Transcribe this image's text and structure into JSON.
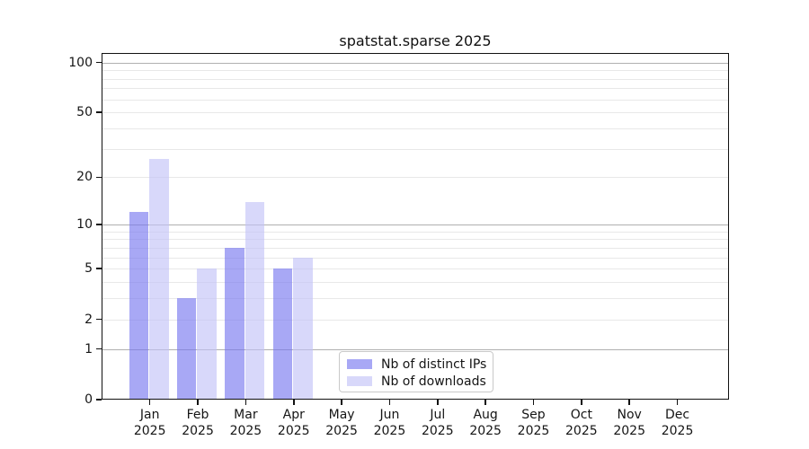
{
  "title": "spatstat.sparse 2025",
  "chart_data": {
    "type": "bar",
    "title": "spatstat.sparse 2025",
    "categories": [
      "Jan",
      "Feb",
      "Mar",
      "Apr",
      "May",
      "Jun",
      "Jul",
      "Aug",
      "Sep",
      "Oct",
      "Nov",
      "Dec"
    ],
    "year_label": "2025",
    "series": [
      {
        "name": "Nb of distinct IPs",
        "legend_color": "#a8a8f5",
        "bar_color": "rgba(117,117,239,0.63)",
        "values": [
          12,
          3,
          7,
          5,
          0,
          0,
          0,
          0,
          0,
          0,
          0,
          0
        ]
      },
      {
        "name": "Nb of downloads",
        "legend_color": "#d8d8fa",
        "bar_color": "rgba(193,193,247,0.63)",
        "values": [
          26,
          5,
          14,
          6,
          0,
          0,
          0,
          0,
          0,
          0,
          0,
          0
        ]
      }
    ],
    "xlabel": "",
    "ylabel": "",
    "yscale": "log1p",
    "ylim": [
      0,
      114
    ],
    "yticks": [
      0,
      1,
      2,
      5,
      10,
      20,
      50,
      100
    ],
    "major_gridlines": [
      1,
      10,
      100
    ],
    "minor_gridlines": [
      2,
      3,
      4,
      5,
      6,
      7,
      8,
      9,
      20,
      30,
      40,
      50,
      60,
      70,
      80,
      90
    ],
    "grid_color_major": "#b0b0b0",
    "grid_color_minor": "#e8e8e8",
    "legend_position": "lower center",
    "grid": "on"
  }
}
